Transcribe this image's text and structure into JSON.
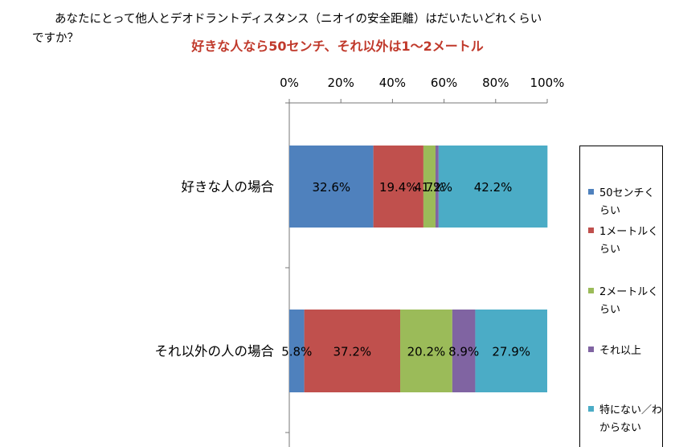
{
  "question": "あなたにとって他人とデオドラントディスタンス（ニオイの安全距離）はだいたいどれくらいですか？",
  "subtitle": "好きな人なら50センチ、それ以外は1～2メートル",
  "chart_data": {
    "type": "bar",
    "orientation": "horizontal",
    "stacked": true,
    "xlim": [
      0,
      100
    ],
    "x_ticks": [
      "0%",
      "20%",
      "40%",
      "60%",
      "80%",
      "100%"
    ],
    "x_tick_values": [
      0,
      20,
      40,
      60,
      80,
      100
    ],
    "x_axis_position": "top",
    "categories": [
      "好きな人の場合",
      "それ以外の人の場合"
    ],
    "series": [
      {
        "name": "50センチくらい",
        "color": "#4f81bd",
        "values": [
          32.6,
          5.8
        ]
      },
      {
        "name": "1メートルくらい",
        "color": "#c0504d",
        "values": [
          19.4,
          37.2
        ]
      },
      {
        "name": "2メートルくらい",
        "color": "#9bbb59",
        "values": [
          4.7,
          20.2
        ]
      },
      {
        "name": "それ以上",
        "color": "#8064a2",
        "values": [
          1.2,
          8.9
        ]
      },
      {
        "name": "特にない／わからない",
        "color": "#4bacc6",
        "values": [
          42.2,
          27.9
        ]
      }
    ],
    "value_labels": [
      [
        "32.6%",
        "19.4%",
        "4.7%",
        "1.2%",
        "42.2%"
      ],
      [
        "5.8%",
        "37.2%",
        "20.2%",
        "8.9%",
        "27.9%"
      ]
    ],
    "legend_position": "right"
  }
}
